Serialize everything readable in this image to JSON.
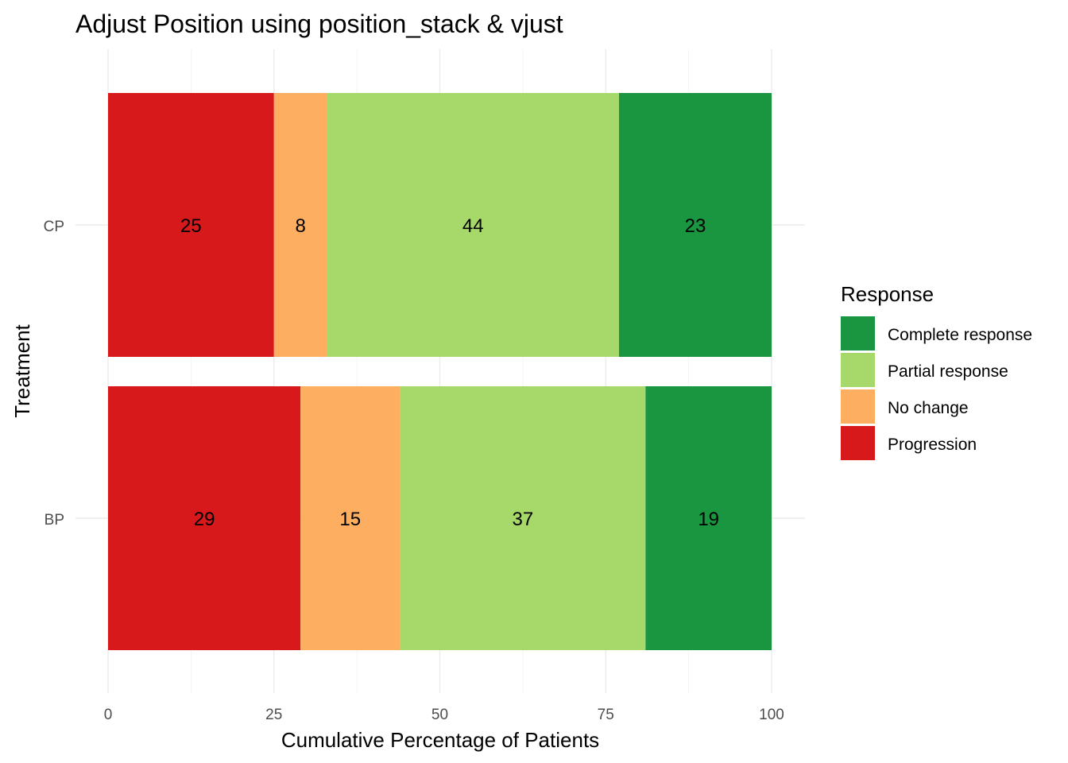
{
  "chart_data": {
    "type": "bar",
    "orientation": "horizontal",
    "stacked": true,
    "title": "Adjust Position using position_stack & vjust",
    "xlabel": "Cumulative Percentage of Patients",
    "ylabel": "Treatment",
    "xlim": [
      0,
      100
    ],
    "x_ticks": [
      "0",
      "25",
      "50",
      "75",
      "100"
    ],
    "categories": [
      "CP",
      "BP"
    ],
    "grid": true,
    "legend": {
      "title": "Response",
      "position": "right",
      "entries": [
        "Complete response",
        "Partial response",
        "No change",
        "Progression"
      ]
    },
    "stack_order": [
      "Progression",
      "No change",
      "Partial response",
      "Complete response"
    ],
    "series": [
      {
        "name": "Progression",
        "color": "#d7191c",
        "values": [
          25,
          29
        ]
      },
      {
        "name": "No change",
        "color": "#fdae61",
        "values": [
          8,
          15
        ]
      },
      {
        "name": "Partial response",
        "color": "#a6d96a",
        "values": [
          44,
          37
        ]
      },
      {
        "name": "Complete response",
        "color": "#1a9641",
        "values": [
          23,
          19
        ]
      }
    ]
  }
}
